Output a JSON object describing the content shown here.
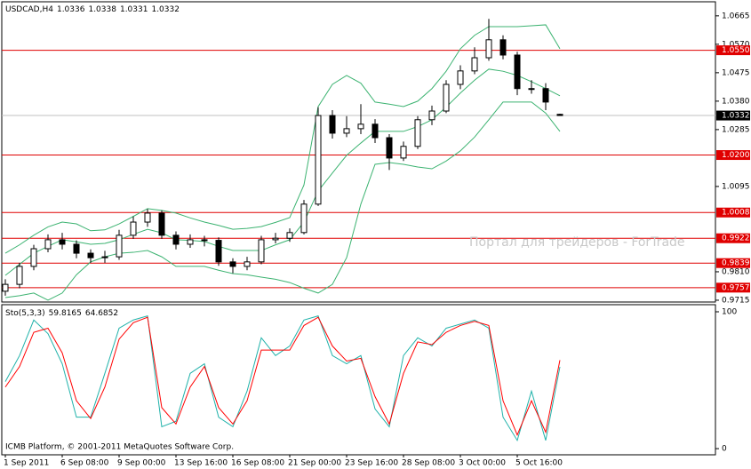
{
  "chart_data": [
    {
      "type": "candlestick",
      "title": "USDCAD,H4",
      "categories": [
        "1 Sep 2011",
        null,
        null,
        null,
        "6 Sep 08:00",
        null,
        null,
        null,
        "9 Sep 00:00",
        null,
        null,
        null,
        "13 Sep 16:00",
        null,
        null,
        null,
        "16 Sep 08:00",
        null,
        null,
        null,
        "21 Sep 00:00",
        null,
        null,
        null,
        "23 Sep 16:00",
        null,
        null,
        null,
        "28 Sep 08:00",
        null,
        null,
        null,
        "3 Oct 00:00",
        null,
        null,
        null,
        "5 Oct 16:00",
        null,
        null,
        null
      ],
      "open": [
        0.9745,
        0.9768,
        0.9828,
        0.9887,
        0.9917,
        0.9902,
        0.9872,
        0.9857,
        0.986,
        0.9932,
        0.9976,
        1.0006,
        0.9932,
        0.9902,
        0.9917,
        0.9915,
        0.9843,
        0.9828,
        0.9843,
        0.9917,
        0.9922,
        0.9941,
        1.0036,
        1.0332,
        1.0273,
        1.0288,
        1.0303,
        1.0258,
        1.019,
        1.0229,
        1.0318,
        1.0347,
        1.0436,
        1.0481,
        1.0525,
        1.0585,
        1.0534,
        1.0422,
        1.0422,
        1.0336
      ],
      "high": [
        0.9785,
        0.984,
        0.99,
        0.9935,
        0.994,
        0.9915,
        0.9885,
        0.988,
        0.995,
        0.9995,
        1.002,
        1.0015,
        0.9945,
        0.9935,
        0.993,
        0.9925,
        0.9855,
        0.986,
        0.993,
        0.994,
        0.9955,
        1.005,
        1.036,
        1.035,
        1.033,
        1.037,
        1.032,
        1.027,
        1.0245,
        1.033,
        1.0365,
        1.045,
        1.05,
        1.056,
        1.0655,
        1.06,
        1.0545,
        1.045,
        1.044,
        1.0338
      ],
      "low": [
        0.973,
        0.9755,
        0.9815,
        0.9875,
        0.9885,
        0.9855,
        0.984,
        0.984,
        0.985,
        0.992,
        0.996,
        0.992,
        0.9885,
        0.989,
        0.9895,
        0.983,
        0.9805,
        0.9815,
        0.9835,
        0.9905,
        0.991,
        0.9935,
        1.003,
        1.0255,
        1.026,
        1.027,
        1.024,
        1.015,
        1.018,
        1.022,
        1.03,
        1.034,
        1.042,
        1.047,
        1.0515,
        1.052,
        1.04,
        1.0405,
        1.035,
        1.0331
      ],
      "close": [
        0.9768,
        0.9828,
        0.9887,
        0.9917,
        0.9902,
        0.9872,
        0.9857,
        0.986,
        0.9932,
        0.9976,
        1.0006,
        0.9932,
        0.9902,
        0.9917,
        0.9915,
        0.9843,
        0.9828,
        0.9843,
        0.9917,
        0.9922,
        0.9941,
        1.0036,
        1.0332,
        1.0273,
        1.0288,
        1.0303,
        1.0258,
        1.019,
        1.0229,
        1.0318,
        1.0347,
        1.0436,
        1.0481,
        1.0525,
        1.0585,
        1.0534,
        1.0422,
        1.0422,
        1.0377,
        1.0332
      ],
      "series": [
        {
          "color": "#3cb371",
          "values": [
            0.9798,
            0.9835,
            0.9872,
            0.9895,
            0.9917,
            0.991,
            0.9902,
            0.9905,
            0.9917,
            0.9935,
            0.9952,
            0.994,
            0.9917,
            0.9915,
            0.9911,
            0.9895,
            0.9881,
            0.9881,
            0.9881,
            0.99,
            0.9917,
            0.9976,
            1.008,
            1.014,
            1.0199,
            1.024,
            1.0279,
            1.0279,
            1.0279,
            1.0295,
            1.0318,
            1.036,
            1.0407,
            1.045,
            1.0487,
            1.048,
            1.0466,
            1.0445,
            1.0422,
            1.0398
          ]
        },
        {
          "color": "#3cb371",
          "values": [
            0.9872,
            0.99,
            0.9932,
            0.996,
            0.9976,
            0.997,
            0.9947,
            0.995,
            0.997,
            0.9995,
            1.0021,
            1.0015,
            1.0006,
            0.999,
            0.9976,
            0.9965,
            0.9952,
            0.9955,
            0.9961,
            0.9975,
            0.9991,
            1.01,
            1.0362,
            1.0436,
            1.0466,
            1.044,
            1.0377,
            1.037,
            1.0362,
            1.038,
            1.0422,
            1.048,
            1.0555,
            1.06,
            1.0629,
            1.0629,
            1.0629,
            1.0632,
            1.0635,
            1.0555
          ]
        },
        {
          "color": "#3cb371",
          "values": [
            0.9724,
            0.973,
            0.9739,
            0.9715,
            0.9739,
            0.98,
            0.9843,
            0.986,
            0.9872,
            0.9875,
            0.9881,
            0.986,
            0.9828,
            0.9828,
            0.9828,
            0.9815,
            0.9804,
            0.98,
            0.9792,
            0.9785,
            0.9774,
            0.9755,
            0.9739,
            0.9768,
            0.9857,
            1.0036,
            1.0169,
            1.0175,
            1.0169,
            1.016,
            1.0154,
            1.018,
            1.0214,
            1.026,
            1.0318,
            1.0377,
            1.0377,
            1.0377,
            1.034,
            1.0279
          ]
        }
      ],
      "ylim": [
        0.9709,
        1.0712
      ],
      "yticks": [
        1.0665,
        {
          "value": 1.057,
          "label": "1.0570"
        },
        1.0475,
        {
          "value": 1.038,
          "label": "1.0380"
        },
        1.0285,
        1.0095,
        {
          "value": 0.981,
          "label": "0.9810"
        },
        0.9715
      ],
      "levels": [
        {
          "value": 1.055,
          "label": "1.0550"
        },
        {
          "value": 1.02,
          "label": "1.0200"
        },
        1.0008,
        0.9922,
        0.9839,
        0.9757
      ],
      "level_color": "#e00000",
      "annotation": "Портал для трейдеров - ForTrade"
    },
    {
      "type": "line",
      "title": "Sto(5,3,3)",
      "series": [
        {
          "color": "#20b2aa",
          "values": [
            49,
            68,
            94,
            84,
            62,
            23,
            23,
            55,
            88,
            94,
            97,
            16,
            20,
            55,
            62,
            23,
            16,
            42,
            81,
            68,
            75,
            94,
            97,
            68,
            62,
            68,
            29,
            16,
            68,
            81,
            75,
            88,
            91,
            94,
            88,
            23,
            6,
            42,
            6,
            59.8165
          ]
        },
        {
          "color": "#ff0000",
          "values": [
            45,
            60,
            85,
            88,
            70,
            35,
            22,
            45,
            80,
            92,
            96,
            30,
            18,
            45,
            60,
            30,
            18,
            35,
            72,
            72,
            72,
            90,
            96,
            75,
            64,
            66,
            38,
            18,
            55,
            78,
            76,
            85,
            90,
            93,
            90,
            35,
            10,
            35,
            12,
            64.6852
          ]
        }
      ],
      "ylim": [
        -4.5,
        105.2
      ],
      "yticks": [
        100,
        0
      ],
      "annotation": "ICMB Platform, © 2001-2011 MetaQuotes Software Corp."
    }
  ]
}
